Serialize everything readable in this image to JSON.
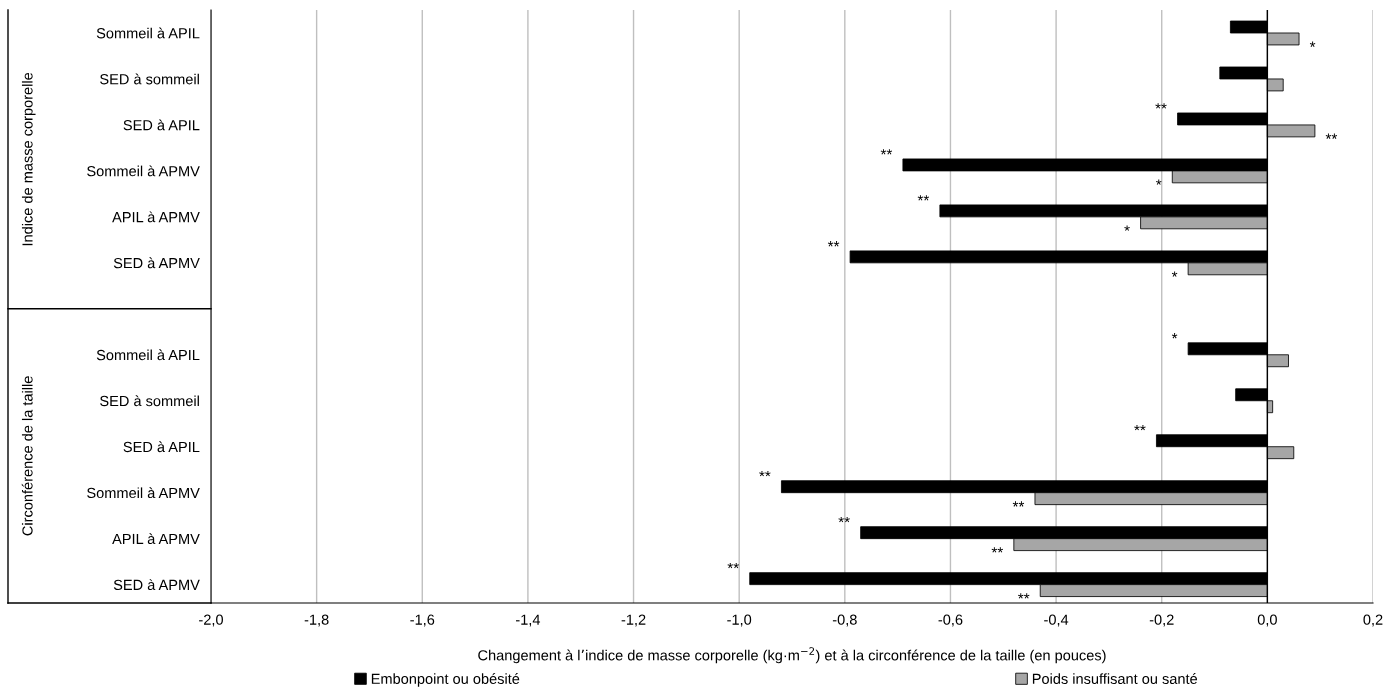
{
  "chart_data": {
    "type": "bar",
    "orientation": "horizontal",
    "categories": [
      "Sommeil à APIL",
      "SED à sommeil",
      "SED à APIL",
      "Sommeil à APMV",
      "APIL à APMV",
      "SED à APMV",
      null,
      "Sommeil à APIL",
      "SED à sommeil",
      "SED à APIL",
      "Sommeil à APMV",
      "APIL à APMV",
      "SED à APMV"
    ],
    "series": [
      {
        "name": "Embonpoint ou obésité",
        "color": "#000000",
        "values": [
          -0.07,
          -0.09,
          -0.17,
          -0.69,
          -0.62,
          -0.79,
          null,
          -0.15,
          -0.06,
          -0.21,
          -0.92,
          -0.77,
          -0.98
        ],
        "value_labels": [
          null,
          null,
          "**",
          "**",
          "**",
          "**",
          null,
          "*",
          null,
          "**",
          "**",
          "**",
          "**"
        ]
      },
      {
        "name": "Poids insuffisant ou santé",
        "color": "#a6a6a6",
        "values": [
          0.06,
          0.03,
          0.09,
          -0.18,
          -0.24,
          -0.15,
          null,
          0.04,
          0.01,
          0.05,
          -0.44,
          -0.48,
          -0.43
        ],
        "value_labels": [
          "*",
          null,
          "**",
          "*",
          "*",
          "*",
          null,
          null,
          null,
          null,
          "**",
          "**",
          "**"
        ]
      }
    ],
    "xlabel": "Changement à l’indice de masse corporelle (kg·m$^{−2}$) et à la circonférence de la taille (en pouces)",
    "annotations": [
      "Indice de masse corporelle",
      "Circonférence de la taille"
    ],
    "xlim": [
      -2.0,
      0.2
    ],
    "xticks": [
      {
        "value": -2.0,
        "label": "-2,0"
      },
      {
        "value": -1.8,
        "label": "-1,8"
      },
      {
        "value": -1.6,
        "label": "-1,6"
      },
      {
        "value": -1.4,
        "label": "-1,4"
      },
      {
        "value": -1.2,
        "label": "-1,2"
      },
      {
        "value": -1.0,
        "label": "-1,0"
      },
      {
        "value": -0.8,
        "label": "-0,8"
      },
      {
        "value": -0.6,
        "label": "-0,6"
      },
      {
        "value": -0.4,
        "label": "-0,4"
      },
      {
        "value": -0.2,
        "label": "-0,2"
      },
      {
        "value": 0.0,
        "label": "0,0"
      },
      {
        "value": 0.2,
        "label": "0,2"
      }
    ],
    "grid": "x",
    "legend": "bottom"
  }
}
